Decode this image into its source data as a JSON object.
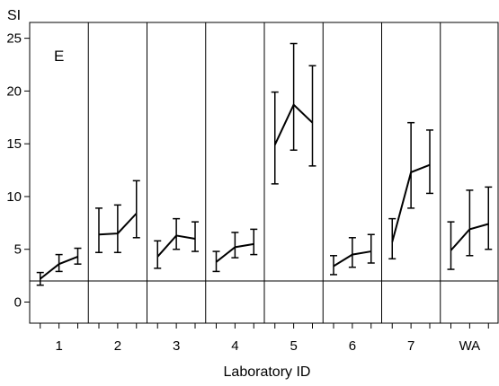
{
  "chart_data": {
    "type": "line",
    "title": "",
    "panel_label": "E",
    "ylabel": "SI",
    "xlabel": "Laboratory ID",
    "ylim": [
      -2,
      26.5
    ],
    "yticks": [
      0,
      5,
      10,
      15,
      20,
      25
    ],
    "reference_line": 2,
    "grid": false,
    "error_bars": true,
    "groups": [
      {
        "label": "1",
        "points": [
          {
            "y": 2.2,
            "low": 1.6,
            "high": 2.8
          },
          {
            "y": 3.6,
            "low": 2.9,
            "high": 4.5
          },
          {
            "y": 4.3,
            "low": 3.6,
            "high": 5.1
          }
        ]
      },
      {
        "label": "2",
        "points": [
          {
            "y": 6.4,
            "low": 4.7,
            "high": 8.9
          },
          {
            "y": 6.5,
            "low": 4.7,
            "high": 9.2
          },
          {
            "y": 8.4,
            "low": 6.1,
            "high": 11.5
          }
        ]
      },
      {
        "label": "3",
        "points": [
          {
            "y": 4.3,
            "low": 3.2,
            "high": 5.8
          },
          {
            "y": 6.3,
            "low": 5.0,
            "high": 7.9
          },
          {
            "y": 6.0,
            "low": 4.8,
            "high": 7.6
          }
        ]
      },
      {
        "label": "4",
        "points": [
          {
            "y": 3.8,
            "low": 2.9,
            "high": 4.8
          },
          {
            "y": 5.2,
            "low": 4.2,
            "high": 6.6
          },
          {
            "y": 5.5,
            "low": 4.5,
            "high": 6.9
          }
        ]
      },
      {
        "label": "5",
        "points": [
          {
            "y": 14.9,
            "low": 11.2,
            "high": 19.9
          },
          {
            "y": 18.7,
            "low": 14.4,
            "high": 24.5
          },
          {
            "y": 17.0,
            "low": 12.9,
            "high": 22.4
          }
        ]
      },
      {
        "label": "6",
        "points": [
          {
            "y": 3.4,
            "low": 2.6,
            "high": 4.4
          },
          {
            "y": 4.5,
            "low": 3.3,
            "high": 6.1
          },
          {
            "y": 4.8,
            "low": 3.7,
            "high": 6.4
          }
        ]
      },
      {
        "label": "7",
        "points": [
          {
            "y": 5.7,
            "low": 4.1,
            "high": 7.9
          },
          {
            "y": 12.3,
            "low": 8.9,
            "high": 17.0
          },
          {
            "y": 13.0,
            "low": 10.3,
            "high": 16.3
          }
        ]
      },
      {
        "label": "WA",
        "points": [
          {
            "y": 4.9,
            "low": 3.1,
            "high": 7.6
          },
          {
            "y": 6.9,
            "low": 4.4,
            "high": 10.6
          },
          {
            "y": 7.4,
            "low": 5.0,
            "high": 10.9
          }
        ]
      }
    ]
  }
}
